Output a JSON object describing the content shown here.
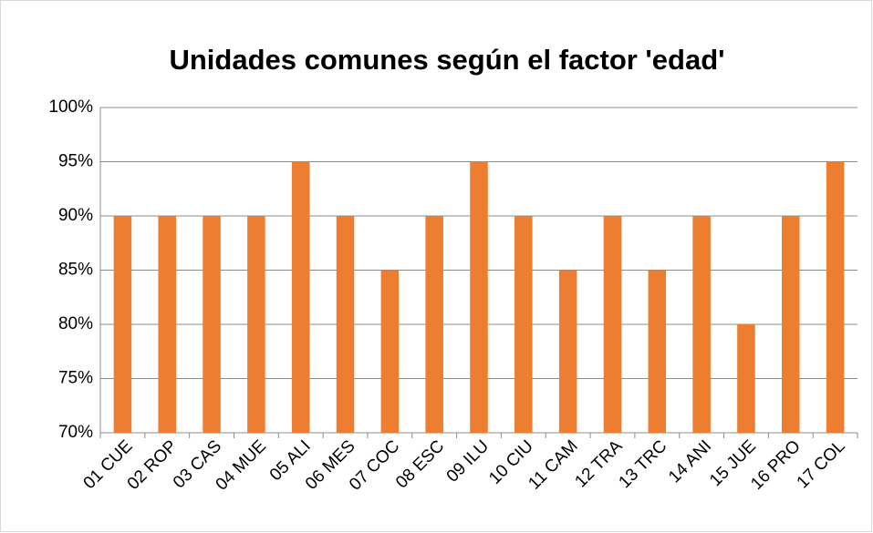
{
  "chart_data": {
    "type": "bar",
    "title": "Unidades comunes según el factor 'edad'",
    "categories": [
      "01 CUE",
      "02 ROP",
      "03 CAS",
      "04 MUE",
      "05 ALI",
      "06 MES",
      "07 COC",
      "08 ESC",
      "09 ILU",
      "10 CIU",
      "11 CAM",
      "12 TRA",
      "13 TRC",
      "14 ANI",
      "15 JUE",
      "16 PRO",
      "17 COL"
    ],
    "values": [
      90,
      90,
      90,
      90,
      95,
      90,
      85,
      90,
      95,
      90,
      85,
      90,
      85,
      90,
      80,
      90,
      95
    ],
    "color": "#ed7d31",
    "ylim": [
      70,
      100
    ],
    "yticks": [
      {
        "value": 70,
        "label": "70%"
      },
      {
        "value": 75,
        "label": "75%"
      },
      {
        "value": 80,
        "label": "80%"
      },
      {
        "value": 85,
        "label": "85%"
      },
      {
        "value": 90,
        "label": "90%"
      },
      {
        "value": 95,
        "label": "95%"
      },
      {
        "value": 100,
        "label": "100%"
      }
    ],
    "grid": true
  }
}
